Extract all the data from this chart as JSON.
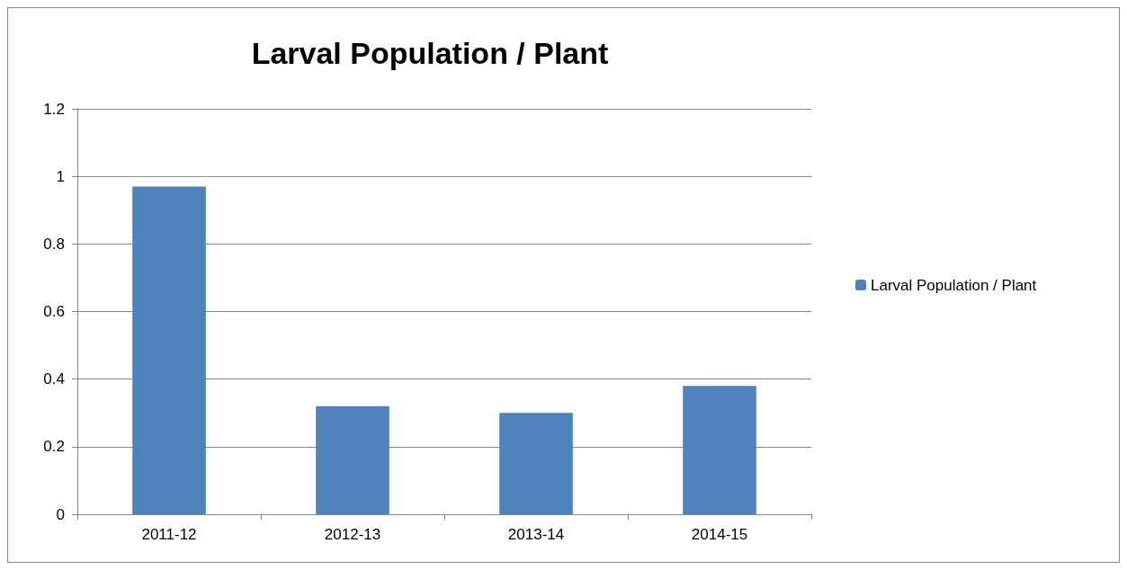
{
  "chart_data": {
    "type": "bar",
    "title": "Larval Population / Plant",
    "categories": [
      "2011-12",
      "2012-13",
      "2013-14",
      "2014-15"
    ],
    "series": [
      {
        "name": "Larval Population / Plant",
        "color": "#4f81bd",
        "values": [
          0.97,
          0.32,
          0.3,
          0.38
        ]
      }
    ],
    "ylim": [
      0,
      1.2
    ],
    "yticks": [
      0,
      0.2,
      0.4,
      0.6,
      0.8,
      1,
      1.2
    ],
    "grid": "y",
    "legend": "right"
  }
}
